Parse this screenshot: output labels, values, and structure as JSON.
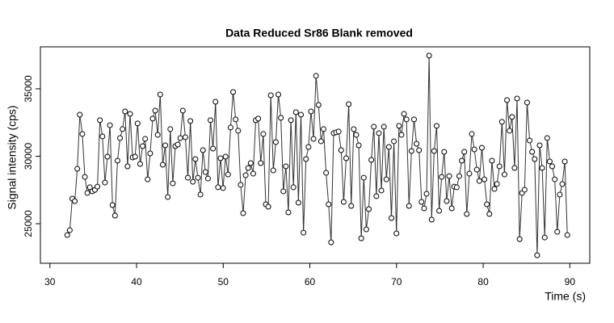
{
  "chart_data": {
    "type": "line",
    "title": "Data Reduced Sr86 Blank removed",
    "x_label": "Time (s)",
    "y_label": "Signal intensity (cps)",
    "xlim": [
      28.9,
      92.3
    ],
    "ylim": [
      22070,
      38110
    ],
    "xticks": [
      30,
      40,
      50,
      60,
      70,
      80,
      90
    ],
    "yticks": [
      25000,
      30000,
      35000
    ],
    "color": "#333333",
    "markers": true,
    "grid": false,
    "x": [
      32,
      32.29,
      32.58,
      32.87,
      33.16,
      33.45,
      33.74,
      34.03,
      34.32,
      34.61,
      34.9,
      35.19,
      35.48,
      35.77,
      36.06,
      36.35,
      36.64,
      36.93,
      37.22,
      37.51,
      37.8,
      38.09,
      38.38,
      38.67,
      38.96,
      39.25,
      39.54,
      39.83,
      40.12,
      40.41,
      40.7,
      40.99,
      41.28,
      41.57,
      41.86,
      42.15,
      42.44,
      42.73,
      43.02,
      43.31,
      43.6,
      43.89,
      44.18,
      44.47,
      44.76,
      45.05,
      45.34,
      45.63,
      45.92,
      46.21,
      46.5,
      46.79,
      47.08,
      47.37,
      47.66,
      47.95,
      48.24,
      48.53,
      48.82,
      49.11,
      49.4,
      49.69,
      49.98,
      50.27,
      50.56,
      50.85,
      51.14,
      51.43,
      51.72,
      52.01,
      52.3,
      52.59,
      52.88,
      53.17,
      53.46,
      53.75,
      54.04,
      54.33,
      54.62,
      54.91,
      55.2,
      55.49,
      55.78,
      56.07,
      56.36,
      56.65,
      56.94,
      57.23,
      57.52,
      57.81,
      58.1,
      58.39,
      58.68,
      58.97,
      59.26,
      59.55,
      59.84,
      60.13,
      60.42,
      60.71,
      61,
      61.29,
      61.58,
      61.87,
      62.16,
      62.45,
      62.74,
      63.03,
      63.32,
      63.61,
      63.9,
      64.19,
      64.48,
      64.77,
      65.06,
      65.35,
      65.64,
      65.93,
      66.22,
      66.51,
      66.8,
      67.09,
      67.38,
      67.67,
      67.96,
      68.25,
      68.54,
      68.83,
      69.12,
      69.41,
      69.7,
      69.99,
      70.28,
      70.57,
      70.86,
      71.15,
      71.44,
      71.73,
      72.02,
      72.31,
      72.6,
      72.89,
      73.18,
      73.47,
      73.76,
      74.05,
      74.34,
      74.63,
      74.92,
      75.21,
      75.5,
      75.79,
      76.08,
      76.37,
      76.66,
      76.95,
      77.24,
      77.53,
      77.82,
      78.11,
      78.4,
      78.69,
      78.98,
      79.27,
      79.56,
      79.85,
      80.14,
      80.43,
      80.72,
      81.01,
      81.3,
      81.59,
      81.88,
      82.17,
      82.46,
      82.75,
      83.04,
      83.33,
      83.62,
      83.91,
      84.2,
      84.49,
      84.78,
      85.07,
      85.36,
      85.65,
      85.94,
      86.23,
      86.52,
      86.81,
      87.1,
      87.39,
      87.68,
      87.97,
      88.26,
      88.55,
      88.84,
      89.13,
      89.42,
      89.71
    ],
    "values": [
      24160,
      24520,
      26860,
      26670,
      29070,
      33080,
      31650,
      28470,
      27280,
      27700,
      27400,
      27510,
      27750,
      32670,
      31470,
      28050,
      29970,
      32300,
      26380,
      25600,
      29670,
      31350,
      32010,
      33320,
      29250,
      33140,
      29910,
      29970,
      32430,
      29430,
      30750,
      31290,
      28290,
      30210,
      32790,
      33380,
      31590,
      34580,
      29370,
      30810,
      26980,
      32010,
      27990,
      30750,
      30870,
      31350,
      33380,
      31410,
      28410,
      32610,
      28110,
      29790,
      28410,
      27160,
      30450,
      28830,
      28350,
      32670,
      30570,
      34040,
      27700,
      29850,
      27640,
      29970,
      28650,
      32130,
      34760,
      32730,
      31890,
      27880,
      25780,
      28590,
      29130,
      29490,
      28710,
      32670,
      32790,
      29490,
      31650,
      26440,
      26260,
      34520,
      28950,
      31050,
      34580,
      32850,
      27400,
      29250,
      25840,
      32670,
      27700,
      33260,
      26560,
      33080,
      24340,
      29790,
      30690,
      33320,
      31290,
      35960,
      33800,
      31110,
      32010,
      28770,
      26440,
      23620,
      31710,
      31770,
      31830,
      30450,
      26620,
      29850,
      33860,
      26320,
      32010,
      31590,
      30810,
      23920,
      28410,
      24580,
      26080,
      29730,
      32190,
      27040,
      31710,
      27460,
      32190,
      28290,
      30690,
      25420,
      31110,
      24280,
      32250,
      31590,
      33140,
      32730,
      26320,
      30390,
      32730,
      30930,
      30450,
      26620,
      26140,
      27220,
      37460,
      25300,
      30390,
      32250,
      25960,
      28470,
      30330,
      26680,
      28530,
      26140,
      27750,
      27700,
      28530,
      29670,
      30330,
      25720,
      28710,
      31650,
      30510,
      29010,
      28170,
      30630,
      28290,
      26440,
      25720,
      29670,
      27580,
      27940,
      29250,
      32550,
      28650,
      34160,
      31890,
      32910,
      29130,
      34280,
      23860,
      27280,
      27520,
      33980,
      31170,
      30330,
      29790,
      22660,
      30810,
      29130,
      23980,
      31350,
      29610,
      29250,
      28290,
      24400,
      27160,
      27940,
      29610,
      24160
    ]
  }
}
